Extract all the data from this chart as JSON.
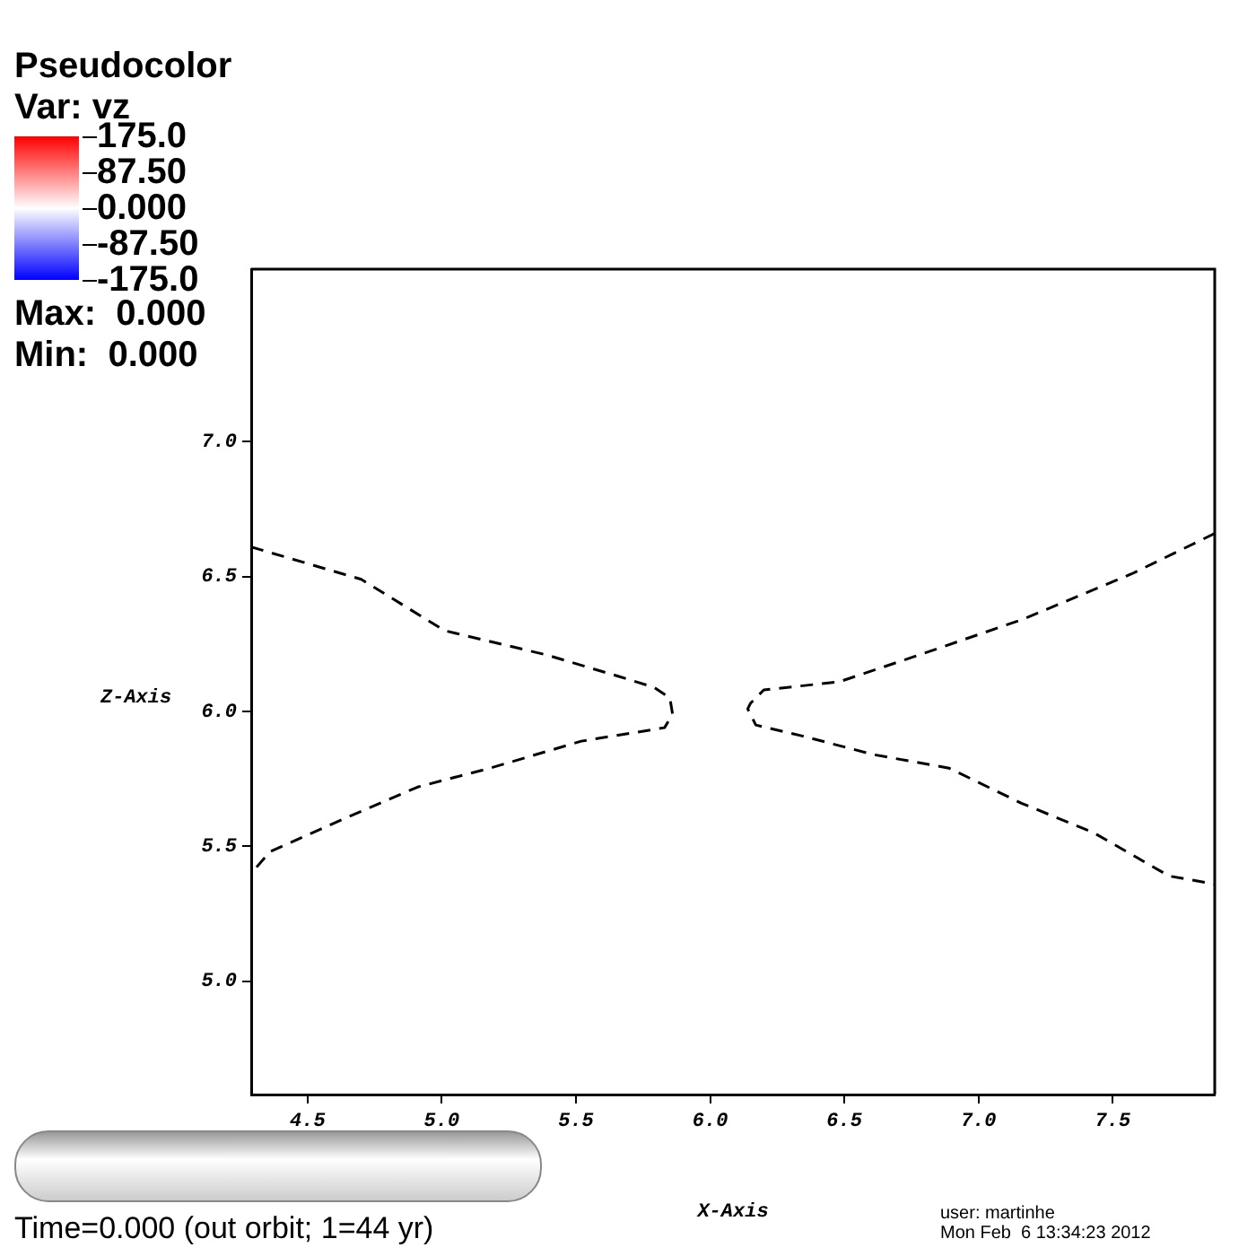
{
  "chart_data": {
    "type": "line",
    "title": "Pseudocolor",
    "clabel": "Var: vz",
    "xlabel": "X-Axis",
    "ylabel": "Z-Axis",
    "xlim": [
      4.29,
      7.88
    ],
    "ylim": [
      4.58,
      7.64
    ],
    "xticks": [
      {
        "value": 4.5,
        "label": "4.5"
      },
      {
        "value": 5,
        "label": "5.0"
      },
      {
        "value": 5.5,
        "label": "5.5"
      },
      {
        "value": 6,
        "label": "6.0"
      },
      {
        "value": 6.5,
        "label": "6.5"
      },
      {
        "value": 7,
        "label": "7.0"
      },
      {
        "value": 7.5,
        "label": "7.5"
      }
    ],
    "yticks": [
      {
        "value": 5,
        "label": "5.0"
      },
      {
        "value": 5.5,
        "label": "5.5"
      },
      {
        "value": 6,
        "label": "6.0"
      },
      {
        "value": 6.5,
        "label": "6.5"
      },
      {
        "value": 7,
        "label": "7.0"
      }
    ],
    "clim": [
      -175,
      175
    ],
    "cticks": [
      {
        "value": 175,
        "label": "175.0"
      },
      {
        "value": 87.5,
        "label": "87.50"
      },
      {
        "value": 0,
        "label": "0.000"
      },
      {
        "value": -87.5,
        "label": "-87.50"
      },
      {
        "value": -175,
        "label": "-175.0"
      }
    ],
    "grid": false,
    "legend": false,
    "line_style": "dashed",
    "marker": "none",
    "series": [
      {
        "color": "#000000",
        "x": [
          4.29,
          4.7,
          5.01,
          5.39,
          5.66,
          5.79,
          5.85,
          5.86,
          5.83,
          5.52,
          5.18,
          4.91,
          4.63,
          4.36,
          4.29
        ],
        "values": [
          6.61,
          6.49,
          6.3,
          6.21,
          6.13,
          6.09,
          6.05,
          5.99,
          5.94,
          5.89,
          5.79,
          5.72,
          5.6,
          5.48,
          5.4
        ]
      },
      {
        "color": "#000000",
        "x": [
          7.88,
          7.57,
          7.16,
          6.75,
          6.48,
          6.2,
          6.15,
          6.14,
          6.17,
          6.34,
          6.61,
          6.89,
          7.16,
          7.43,
          7.71,
          7.88
        ],
        "values": [
          6.66,
          6.51,
          6.34,
          6.2,
          6.11,
          6.08,
          6.03,
          6.01,
          5.95,
          5.91,
          5.84,
          5.79,
          5.66,
          5.55,
          5.39,
          5.36
        ]
      }
    ],
    "annotations": [
      "Max:  0.000",
      "Min:  0.000",
      "Time=0.000 (out orbit; 1=44 yr)",
      "user: martinhe",
      "Mon Feb  6 13:34:23 2012"
    ]
  }
}
